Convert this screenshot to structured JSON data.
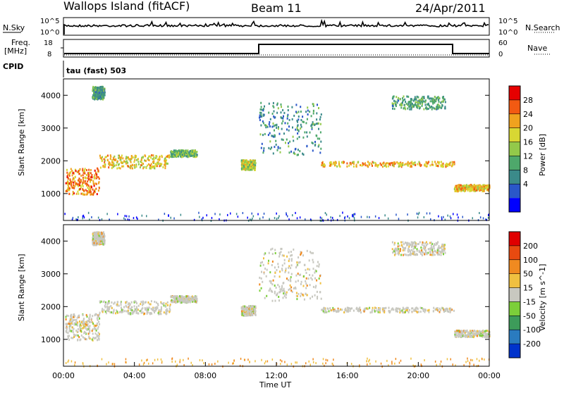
{
  "header": {
    "station": "Wallops Island (fitACF)",
    "beam": "Beam 11",
    "date": "24/Apr/2011"
  },
  "strip_labels": {
    "nsky": "N.Sky",
    "nsearch": "N.Search",
    "freq": "Freq.",
    "freq_unit": "[MHz]",
    "nave": "Nave",
    "cpid": "CPID",
    "cpid_value": "tau (fast) 503",
    "nsky_ticks": [
      "10^5",
      "10^0"
    ],
    "freq_ticks": [
      "18",
      "8"
    ],
    "nave_ticks": [
      "60",
      "0"
    ],
    "nsearch_ticks": [
      "10^5",
      "10^0"
    ]
  },
  "chart_data": [
    {
      "type": "heatmap",
      "panel": "power",
      "ylabel": "Slant Range [km]",
      "yticks": [
        1000,
        2000,
        3000,
        4000
      ],
      "ylim": [
        180,
        4500
      ],
      "xlim_hours": [
        0,
        24
      ],
      "colorbar": {
        "label": "Power [dB]",
        "ticks": [
          "28",
          "24",
          "20",
          "16",
          "12",
          "8",
          "4"
        ],
        "colors": [
          "#0000ff",
          "#2a57c9",
          "#3b8a8a",
          "#4ea86b",
          "#93c94a",
          "#d8d733",
          "#f0a21e",
          "#f25a12",
          "#e60000"
        ]
      },
      "bands": [
        {
          "t0": 0.1,
          "t1": 2.0,
          "r0": 1000,
          "r1": 1800,
          "power": 26
        },
        {
          "t0": 2.0,
          "t1": 6.0,
          "r0": 1800,
          "r1": 2200,
          "power": 22
        },
        {
          "t0": 6.0,
          "t1": 7.5,
          "r0": 2150,
          "r1": 2350,
          "power": 16
        },
        {
          "t0": 10.0,
          "t1": 10.8,
          "r0": 1750,
          "r1": 2050,
          "power": 20
        },
        {
          "t0": 14.5,
          "t1": 22.0,
          "r0": 1850,
          "r1": 2000,
          "power": 24
        },
        {
          "t0": 11.0,
          "t1": 14.5,
          "r0": 2200,
          "r1": 3800,
          "power": 12
        },
        {
          "t0": 22.0,
          "t1": 24.0,
          "r0": 1100,
          "r1": 1300,
          "power": 24
        },
        {
          "t0": 1.6,
          "t1": 2.3,
          "r0": 3900,
          "r1": 4300,
          "power": 14
        },
        {
          "t0": 18.5,
          "t1": 21.5,
          "r0": 3600,
          "r1": 4000,
          "power": 14
        }
      ]
    },
    {
      "type": "heatmap",
      "panel": "velocity",
      "ylabel": "Slant Range [km]",
      "yticks": [
        1000,
        2000,
        3000,
        4000
      ],
      "ylim": [
        180,
        4500
      ],
      "xlim_hours": [
        0,
        24
      ],
      "xticks": [
        "00:00",
        "04:00",
        "08:00",
        "12:00",
        "16:00",
        "20:00",
        "00:00"
      ],
      "xlabel": "Time UT",
      "colorbar": {
        "label": "Velocity [m s^-1]",
        "ticks": [
          "200",
          "100",
          "50",
          "15",
          "-15",
          "-50",
          "-100",
          "-200"
        ],
        "colors": [
          "#0033cc",
          "#2a7bbf",
          "#3d9b5a",
          "#7ccf3a",
          "#c8c8c0",
          "#f0c040",
          "#f08a20",
          "#e84a10",
          "#e00000"
        ]
      }
    }
  ]
}
